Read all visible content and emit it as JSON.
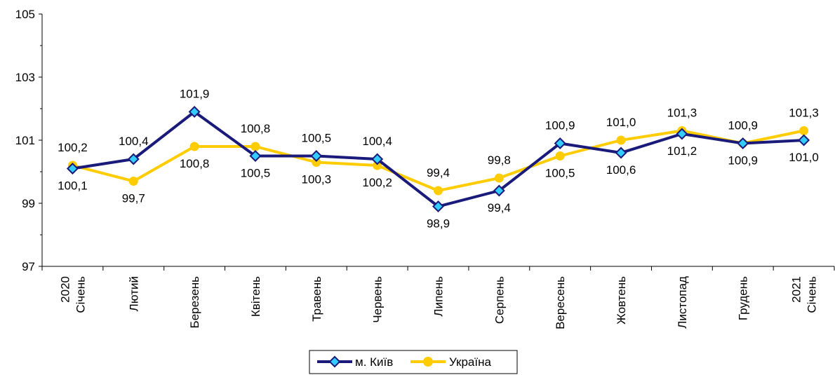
{
  "chart_data": {
    "type": "line",
    "categories": [
      [
        "2020",
        "Січень"
      ],
      [
        "Лютий"
      ],
      [
        "Березень"
      ],
      [
        "Квітень"
      ],
      [
        "Травень"
      ],
      [
        "Червень"
      ],
      [
        "Липень"
      ],
      [
        "Серпень"
      ],
      [
        "Вересень"
      ],
      [
        "Жовтень"
      ],
      [
        "Листопад"
      ],
      [
        "Грудень"
      ],
      [
        "2021",
        "Січень"
      ]
    ],
    "series": [
      {
        "name": "м. Київ",
        "color": "#1a1a7a",
        "marker_fill": "#33ccff",
        "values": [
          100.1,
          100.4,
          101.9,
          100.5,
          100.5,
          100.4,
          98.9,
          99.4,
          100.9,
          100.6,
          101.2,
          100.9,
          101.0
        ],
        "labels": [
          "100,1",
          "100,4",
          "101,9",
          "100,5",
          "100,5",
          "100,4",
          "98,9",
          "99,4",
          "100,9",
          "100,6",
          "101,2",
          "100,9",
          "101,0"
        ]
      },
      {
        "name": "Україна",
        "color": "#ffcc00",
        "values": [
          100.2,
          99.7,
          100.8,
          100.8,
          100.3,
          100.2,
          99.4,
          99.8,
          100.5,
          101.0,
          101.3,
          100.9,
          101.3
        ],
        "labels": [
          "100,2",
          "99,7",
          "100,8",
          "100,8",
          "100,3",
          "100,2",
          "99,4",
          "99,8",
          "100,5",
          "101,0",
          "101,3",
          "100,9",
          "101,3"
        ]
      }
    ],
    "yaxis": {
      "min": 97,
      "max": 105,
      "ticks": [
        97,
        99,
        101,
        103,
        105
      ]
    },
    "grid": false,
    "legend_position": "bottom-center"
  }
}
